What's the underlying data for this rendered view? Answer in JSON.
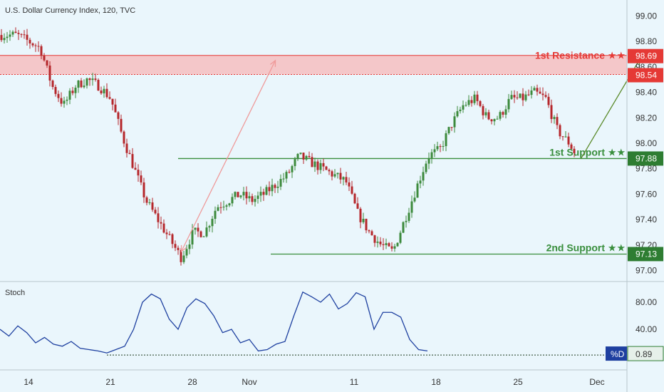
{
  "title": "U.S. Dollar Currency Index, 120, TVC",
  "chart_data": [
    {
      "type": "candlestick",
      "title": "U.S. Dollar Currency Index, 120, TVC",
      "x_ticks": [
        "14",
        "21",
        "28",
        "Nov",
        "11",
        "18",
        "25",
        "Dec"
      ],
      "y_ticks": [
        "99.00",
        "98.80",
        "98.60",
        "98.40",
        "98.20",
        "98.00",
        "97.80",
        "97.60",
        "97.40",
        "97.20",
        "97.00"
      ],
      "ylim": [
        96.92,
        99.08
      ],
      "colors": {
        "up": "#3c8a3c",
        "down": "#b5272b",
        "resistance": "#e53935",
        "support": "#388e3c"
      },
      "resistance_zone": {
        "low": 98.54,
        "high": 98.69
      },
      "levels": [
        {
          "label": "1st Resistance ★★",
          "value": 98.69,
          "tag": "98.69",
          "color": "#e53935"
        },
        {
          "label": "1st Support ★★",
          "value": 97.88,
          "tag": "97.88",
          "color": "#388e3c"
        },
        {
          "label": "2nd Support ★★",
          "value": 97.13,
          "tag": "97.13",
          "color": "#388e3c"
        }
      ],
      "extra_tags": [
        {
          "text": "98.54",
          "value": 98.54
        }
      ],
      "close_path": [
        [
          -1,
          98.85
        ],
        [
          1,
          98.75
        ],
        [
          2,
          98.45
        ],
        [
          3,
          98.3
        ],
        [
          4,
          98.45
        ],
        [
          5,
          98.5
        ],
        [
          6,
          98.45
        ],
        [
          7,
          98.35
        ],
        [
          8,
          98.05
        ],
        [
          9,
          97.8
        ],
        [
          10,
          97.55
        ],
        [
          11,
          97.4
        ],
        [
          12,
          97.25
        ],
        [
          13,
          97.1
        ],
        [
          14,
          97.3
        ],
        [
          15,
          97.3
        ],
        [
          16,
          97.5
        ],
        [
          17,
          97.55
        ],
        [
          18,
          97.6
        ],
        [
          19,
          97.55
        ],
        [
          20,
          97.6
        ],
        [
          22,
          97.75
        ],
        [
          23,
          97.9
        ],
        [
          24,
          97.85
        ],
        [
          25,
          97.8
        ],
        [
          26,
          97.75
        ],
        [
          27,
          97.7
        ],
        [
          28,
          97.45
        ],
        [
          29,
          97.3
        ],
        [
          30,
          97.2
        ],
        [
          31,
          97.15
        ],
        [
          32,
          97.4
        ],
        [
          33,
          97.65
        ],
        [
          34,
          97.9
        ],
        [
          35,
          97.95
        ],
        [
          36,
          98.15
        ],
        [
          37,
          98.3
        ],
        [
          38,
          98.35
        ],
        [
          39,
          98.2
        ],
        [
          40,
          98.2
        ],
        [
          41,
          98.35
        ],
        [
          42,
          98.35
        ],
        [
          43,
          98.4
        ],
        [
          44,
          98.35
        ],
        [
          45,
          98.1
        ],
        [
          46,
          98.0
        ],
        [
          46.5,
          97.92
        ]
      ],
      "arrows": [
        {
          "from": [
            13,
            97.15
          ],
          "to": [
            21,
            98.65
          ],
          "color": "#ef9a9a"
        },
        {
          "from": [
            47,
            97.88
          ],
          "to": [
            52,
            98.66
          ],
          "color": "#5a8a2a"
        }
      ],
      "annotations": [
        "1st Resistance ★★",
        "1st Support ★★",
        "2nd Support ★★"
      ]
    },
    {
      "type": "line",
      "title": "Stoch",
      "y_ticks": [
        "80.00",
        "40.00"
      ],
      "ylim": [
        0,
        100
      ],
      "series": [
        {
          "name": "%D",
          "color": "#1e40a0",
          "last_value": "0.89",
          "points": [
            [
              0,
              40
            ],
            [
              1,
              30
            ],
            [
              2,
              45
            ],
            [
              3,
              35
            ],
            [
              4,
              20
            ],
            [
              5,
              28
            ],
            [
              6,
              18
            ],
            [
              7,
              15
            ],
            [
              8,
              22
            ],
            [
              9,
              12
            ],
            [
              10,
              10
            ],
            [
              11,
              8
            ],
            [
              12,
              5
            ],
            [
              13,
              10
            ],
            [
              14,
              15
            ],
            [
              15,
              40
            ],
            [
              16,
              80
            ],
            [
              17,
              92
            ],
            [
              18,
              85
            ],
            [
              19,
              55
            ],
            [
              20,
              40
            ],
            [
              21,
              72
            ],
            [
              22,
              85
            ],
            [
              23,
              78
            ],
            [
              24,
              60
            ],
            [
              25,
              35
            ],
            [
              26,
              40
            ],
            [
              27,
              20
            ],
            [
              28,
              25
            ],
            [
              29,
              8
            ],
            [
              30,
              10
            ],
            [
              31,
              18
            ],
            [
              32,
              22
            ],
            [
              33,
              60
            ],
            [
              34,
              95
            ],
            [
              35,
              88
            ],
            [
              36,
              80
            ],
            [
              37,
              92
            ],
            [
              38,
              70
            ],
            [
              39,
              78
            ],
            [
              40,
              94
            ],
            [
              41,
              88
            ],
            [
              42,
              40
            ],
            [
              43,
              65
            ],
            [
              44,
              65
            ],
            [
              45,
              58
            ],
            [
              46,
              25
            ],
            [
              47,
              10
            ],
            [
              48,
              8
            ]
          ]
        }
      ],
      "reference_value": 2
    }
  ]
}
